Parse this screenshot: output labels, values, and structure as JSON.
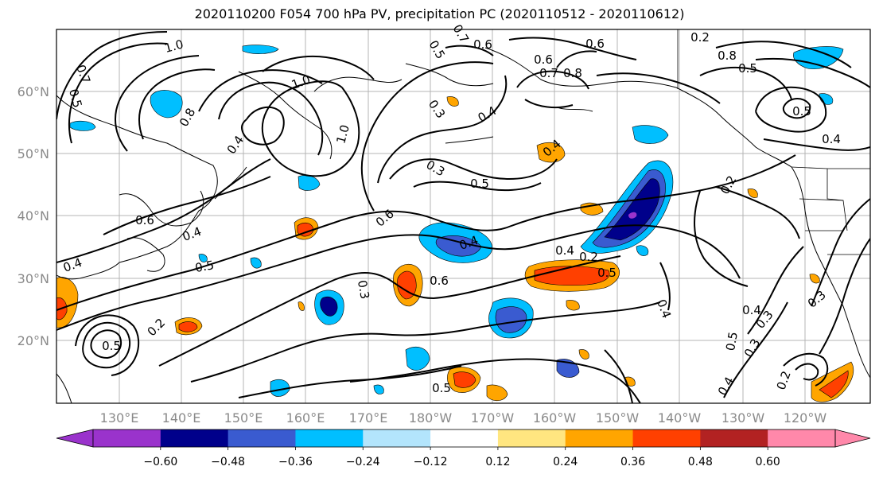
{
  "title": "2020110200 F054 700 hPa PV, precipitation PC (2020110512 - 2020110612)",
  "map": {
    "lon_ticks": [
      "130°E",
      "140°E",
      "150°E",
      "160°E",
      "170°E",
      "180°W",
      "170°W",
      "160°W",
      "150°W",
      "140°W",
      "130°W",
      "120°W"
    ],
    "lat_ticks": [
      "60°N",
      "50°N",
      "40°N",
      "30°N",
      "20°N"
    ],
    "contour_labels": [
      "1.0",
      "0.7",
      "0.5",
      "0.8",
      "0.4",
      "1.0",
      "1.0",
      "0.6",
      "0.4",
      "0.5",
      "0.4",
      "0.2",
      "0.5",
      "0.3",
      "0.6",
      "0.5",
      "0.3",
      "0.4",
      "0.3",
      "0.5",
      "0.6",
      "0.4",
      "0.6",
      "0.5",
      "0.7",
      "0.6",
      "0.6",
      "0.8",
      "0.4",
      "0.8",
      "0.5",
      "0.4",
      "0.2",
      "0.3",
      "0.4",
      "0.5",
      "0.4",
      "0.2",
      "0.2",
      "0.3",
      "0.4",
      "0.5",
      "0.4",
      "0.3",
      "0.2",
      "0.5",
      "0.7"
    ]
  },
  "colorbar": {
    "labels": [
      "−0.60",
      "−0.48",
      "−0.36",
      "−0.24",
      "−0.12",
      "0.12",
      "0.24",
      "0.36",
      "0.48",
      "0.60"
    ],
    "colors": [
      "#9a33cc",
      "#00008b",
      "#3a5bd0",
      "#00bfff",
      "#b3e5fc",
      "#ffffff",
      "#ffe680",
      "#ffa500",
      "#ff4000",
      "#b22222",
      "#ff88aa"
    ]
  }
}
